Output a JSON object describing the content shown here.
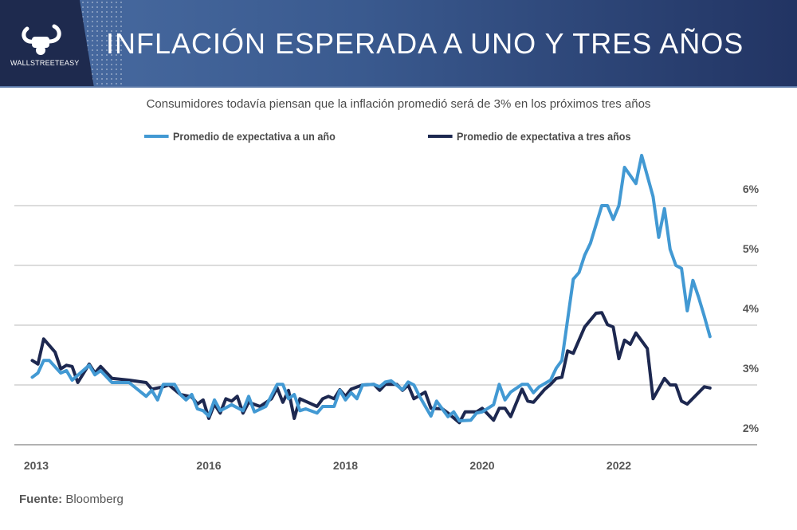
{
  "header": {
    "title": "INFLACIÓN ESPERADA A UNO Y TRES AÑOS",
    "logo_text": "WALLSTREETEASY"
  },
  "subtitle": "Consumidores todavía piensan que la inflación promedió será de 3% en los próximos tres años",
  "source": {
    "label": "Fuente:",
    "value": "Bloomberg"
  },
  "colors": {
    "one_year": "#4299d3",
    "three_year": "#1d2850",
    "header": "#1e2a4e"
  },
  "chart_data": {
    "type": "line",
    "title": "",
    "xlabel": "",
    "ylabel": "",
    "ylim": [
      2,
      6.9
    ],
    "grid": true,
    "legend": "top",
    "y_ticks": [
      "2%",
      "3%",
      "4%",
      "5%",
      "6%"
    ],
    "y_tick_values": [
      2,
      3,
      4,
      5,
      6
    ],
    "x_ticks": [
      "2013",
      "2016",
      "2018",
      "2020",
      "2022"
    ],
    "series": [
      {
        "name": "Promedio de expectativa a un año",
        "color": "#4299d3",
        "points": [
          [
            "2013-06",
            3.13
          ],
          [
            "2013-07",
            3.2
          ],
          [
            "2013-08",
            3.41
          ],
          [
            "2013-09",
            3.41
          ],
          [
            "2013-11",
            3.2
          ],
          [
            "2013-12",
            3.24
          ],
          [
            "2014-01",
            3.08
          ],
          [
            "2014-04",
            3.33
          ],
          [
            "2014-05",
            3.17
          ],
          [
            "2014-06",
            3.24
          ],
          [
            "2014-08",
            3.04
          ],
          [
            "2014-11",
            3.04
          ],
          [
            "2015-02",
            2.81
          ],
          [
            "2015-03",
            2.91
          ],
          [
            "2015-04",
            2.75
          ],
          [
            "2015-05",
            3.01
          ],
          [
            "2015-07",
            3.01
          ],
          [
            "2015-08",
            2.84
          ],
          [
            "2015-09",
            2.75
          ],
          [
            "2015-10",
            2.84
          ],
          [
            "2015-11",
            2.6
          ],
          [
            "2015-12",
            2.57
          ],
          [
            "2016-01",
            2.48
          ],
          [
            "2016-02",
            2.75
          ],
          [
            "2016-03",
            2.57
          ],
          [
            "2016-05",
            2.67
          ],
          [
            "2016-07",
            2.57
          ],
          [
            "2016-08",
            2.81
          ],
          [
            "2016-09",
            2.55
          ],
          [
            "2016-11",
            2.64
          ],
          [
            "2017-01",
            3.01
          ],
          [
            "2017-02",
            3.01
          ],
          [
            "2017-03",
            2.77
          ],
          [
            "2017-04",
            2.84
          ],
          [
            "2017-05",
            2.57
          ],
          [
            "2017-06",
            2.6
          ],
          [
            "2017-08",
            2.53
          ],
          [
            "2017-09",
            2.64
          ],
          [
            "2017-11",
            2.64
          ],
          [
            "2017-12",
            2.91
          ],
          [
            "2018-01",
            2.75
          ],
          [
            "2018-02",
            2.87
          ],
          [
            "2018-03",
            2.77
          ],
          [
            "2018-04",
            3.0
          ],
          [
            "2018-06",
            3.01
          ],
          [
            "2018-07",
            2.97
          ],
          [
            "2018-08",
            3.05
          ],
          [
            "2018-09",
            3.07
          ],
          [
            "2018-11",
            2.92
          ],
          [
            "2018-12",
            3.05
          ],
          [
            "2019-01",
            3.0
          ],
          [
            "2019-02",
            2.81
          ],
          [
            "2019-04",
            2.48
          ],
          [
            "2019-05",
            2.73
          ],
          [
            "2019-07",
            2.47
          ],
          [
            "2019-08",
            2.55
          ],
          [
            "2019-09",
            2.4
          ],
          [
            "2019-11",
            2.41
          ],
          [
            "2019-12",
            2.53
          ],
          [
            "2020-01",
            2.55
          ],
          [
            "2020-03",
            2.67
          ],
          [
            "2020-04",
            3.01
          ],
          [
            "2020-05",
            2.75
          ],
          [
            "2020-06",
            2.88
          ],
          [
            "2020-08",
            3.01
          ],
          [
            "2020-09",
            3.01
          ],
          [
            "2020-10",
            2.87
          ],
          [
            "2020-11",
            2.97
          ],
          [
            "2021-01",
            3.08
          ],
          [
            "2021-02",
            3.28
          ],
          [
            "2021-03",
            3.41
          ],
          [
            "2021-05",
            4.77
          ],
          [
            "2021-06",
            4.88
          ],
          [
            "2021-07",
            5.17
          ],
          [
            "2021-08",
            5.37
          ],
          [
            "2021-10",
            6.0
          ],
          [
            "2021-11",
            6.0
          ],
          [
            "2021-12",
            5.77
          ],
          [
            "2022-01",
            6.0
          ],
          [
            "2022-02",
            6.64
          ],
          [
            "2022-04",
            6.37
          ],
          [
            "2022-05",
            6.84
          ],
          [
            "2022-07",
            6.15
          ],
          [
            "2022-08",
            5.47
          ],
          [
            "2022-09",
            5.95
          ],
          [
            "2022-10",
            5.27
          ],
          [
            "2022-11",
            5.0
          ],
          [
            "2022-12",
            4.95
          ],
          [
            "2023-01",
            4.24
          ],
          [
            "2023-02",
            4.75
          ],
          [
            "2023-03",
            4.47
          ],
          [
            "2023-04",
            4.15
          ],
          [
            "2023-05",
            3.81
          ]
        ]
      },
      {
        "name": "Promedio de expectativa a tres años",
        "color": "#1d2850",
        "points": [
          [
            "2013-06",
            3.41
          ],
          [
            "2013-07",
            3.35
          ],
          [
            "2013-08",
            3.77
          ],
          [
            "2013-10",
            3.55
          ],
          [
            "2013-11",
            3.27
          ],
          [
            "2013-12",
            3.33
          ],
          [
            "2014-01",
            3.31
          ],
          [
            "2014-02",
            3.04
          ],
          [
            "2014-04",
            3.35
          ],
          [
            "2014-05",
            3.2
          ],
          [
            "2014-06",
            3.31
          ],
          [
            "2014-08",
            3.11
          ],
          [
            "2014-11",
            3.08
          ],
          [
            "2015-02",
            3.04
          ],
          [
            "2015-03",
            2.93
          ],
          [
            "2015-05",
            2.97
          ],
          [
            "2015-06",
            3.0
          ],
          [
            "2015-08",
            2.84
          ],
          [
            "2015-10",
            2.8
          ],
          [
            "2015-11",
            2.68
          ],
          [
            "2015-12",
            2.75
          ],
          [
            "2016-01",
            2.44
          ],
          [
            "2016-02",
            2.68
          ],
          [
            "2016-03",
            2.53
          ],
          [
            "2016-04",
            2.77
          ],
          [
            "2016-05",
            2.73
          ],
          [
            "2016-06",
            2.81
          ],
          [
            "2016-07",
            2.53
          ],
          [
            "2016-08",
            2.71
          ],
          [
            "2016-10",
            2.64
          ],
          [
            "2016-12",
            2.77
          ],
          [
            "2017-01",
            2.95
          ],
          [
            "2017-02",
            2.71
          ],
          [
            "2017-03",
            2.91
          ],
          [
            "2017-04",
            2.44
          ],
          [
            "2017-05",
            2.77
          ],
          [
            "2017-08",
            2.64
          ],
          [
            "2017-09",
            2.77
          ],
          [
            "2017-10",
            2.81
          ],
          [
            "2017-11",
            2.77
          ],
          [
            "2017-12",
            2.92
          ],
          [
            "2018-01",
            2.81
          ],
          [
            "2018-02",
            2.93
          ],
          [
            "2018-04",
            3.0
          ],
          [
            "2018-06",
            3.01
          ],
          [
            "2018-07",
            2.91
          ],
          [
            "2018-08",
            3.01
          ],
          [
            "2018-10",
            3.01
          ],
          [
            "2018-11",
            2.91
          ],
          [
            "2018-12",
            3.0
          ],
          [
            "2019-01",
            2.77
          ],
          [
            "2019-03",
            2.88
          ],
          [
            "2019-04",
            2.61
          ],
          [
            "2019-06",
            2.6
          ],
          [
            "2019-07",
            2.53
          ],
          [
            "2019-09",
            2.37
          ],
          [
            "2019-10",
            2.55
          ],
          [
            "2019-12",
            2.55
          ],
          [
            "2020-01",
            2.61
          ],
          [
            "2020-03",
            2.41
          ],
          [
            "2020-04",
            2.61
          ],
          [
            "2020-05",
            2.61
          ],
          [
            "2020-06",
            2.47
          ],
          [
            "2020-08",
            2.93
          ],
          [
            "2020-09",
            2.73
          ],
          [
            "2020-10",
            2.71
          ],
          [
            "2020-12",
            2.93
          ],
          [
            "2021-01",
            3.01
          ],
          [
            "2021-02",
            3.11
          ],
          [
            "2021-03",
            3.13
          ],
          [
            "2021-04",
            3.57
          ],
          [
            "2021-05",
            3.53
          ],
          [
            "2021-07",
            3.97
          ],
          [
            "2021-09",
            4.2
          ],
          [
            "2021-10",
            4.21
          ],
          [
            "2021-11",
            4.01
          ],
          [
            "2021-12",
            3.97
          ],
          [
            "2022-01",
            3.44
          ],
          [
            "2022-02",
            3.75
          ],
          [
            "2022-03",
            3.68
          ],
          [
            "2022-04",
            3.87
          ],
          [
            "2022-06",
            3.61
          ],
          [
            "2022-07",
            2.77
          ],
          [
            "2022-09",
            3.11
          ],
          [
            "2022-10",
            3.0
          ],
          [
            "2022-11",
            3.0
          ],
          [
            "2022-12",
            2.73
          ],
          [
            "2023-01",
            2.68
          ],
          [
            "2023-04",
            2.97
          ],
          [
            "2023-05",
            2.95
          ]
        ]
      }
    ]
  }
}
